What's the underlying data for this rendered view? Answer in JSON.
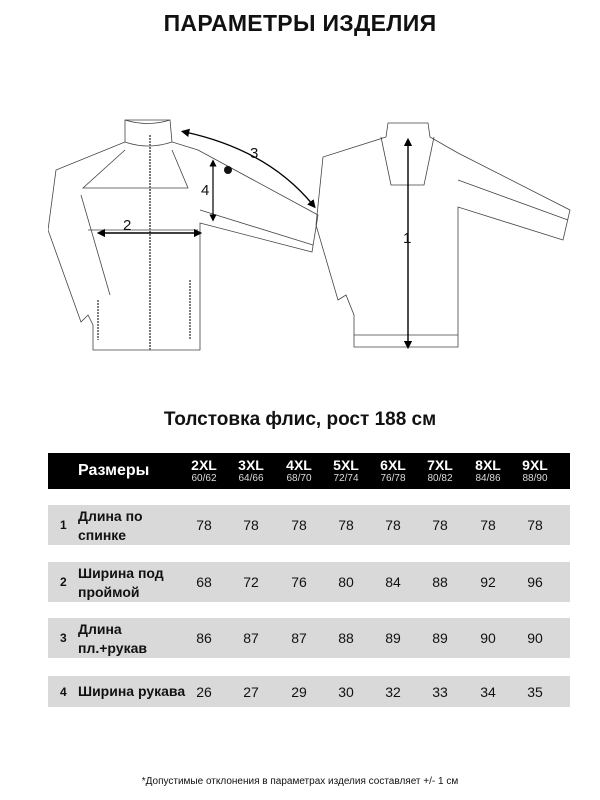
{
  "title": "ПАРАМЕТРЫ ИЗДЕЛИЯ",
  "illustration": {
    "labels": [
      "1",
      "2",
      "3",
      "4"
    ]
  },
  "subtitle": "Толстовка флис, рост 188 см",
  "table": {
    "header_label": "Размеры",
    "sizes": [
      {
        "size": "2XL",
        "range": "60/62"
      },
      {
        "size": "3XL",
        "range": "64/66"
      },
      {
        "size": "4XL",
        "range": "68/70"
      },
      {
        "size": "5XL",
        "range": "72/74"
      },
      {
        "size": "6XL",
        "range": "76/78"
      },
      {
        "size": "7XL",
        "range": "80/82"
      },
      {
        "size": "8XL",
        "range": "84/86"
      },
      {
        "size": "9XL",
        "range": "88/90"
      }
    ],
    "rows": [
      {
        "num": "1",
        "label": "Длина по спинке",
        "values": [
          "78",
          "78",
          "78",
          "78",
          "78",
          "78",
          "78",
          "78"
        ]
      },
      {
        "num": "2",
        "label": "Ширина под проймой",
        "values": [
          "68",
          "72",
          "76",
          "80",
          "84",
          "88",
          "92",
          "96"
        ]
      },
      {
        "num": "3",
        "label": "Длина пл.+рукав",
        "values": [
          "86",
          "87",
          "87",
          "88",
          "89",
          "89",
          "90",
          "90"
        ]
      },
      {
        "num": "4",
        "label": "Ширина рукава",
        "values": [
          "26",
          "27",
          "29",
          "30",
          "32",
          "33",
          "34",
          "35"
        ]
      }
    ]
  },
  "footnote": "*Допустимые отклонения в параметрах изделия составляет +/- 1 см"
}
